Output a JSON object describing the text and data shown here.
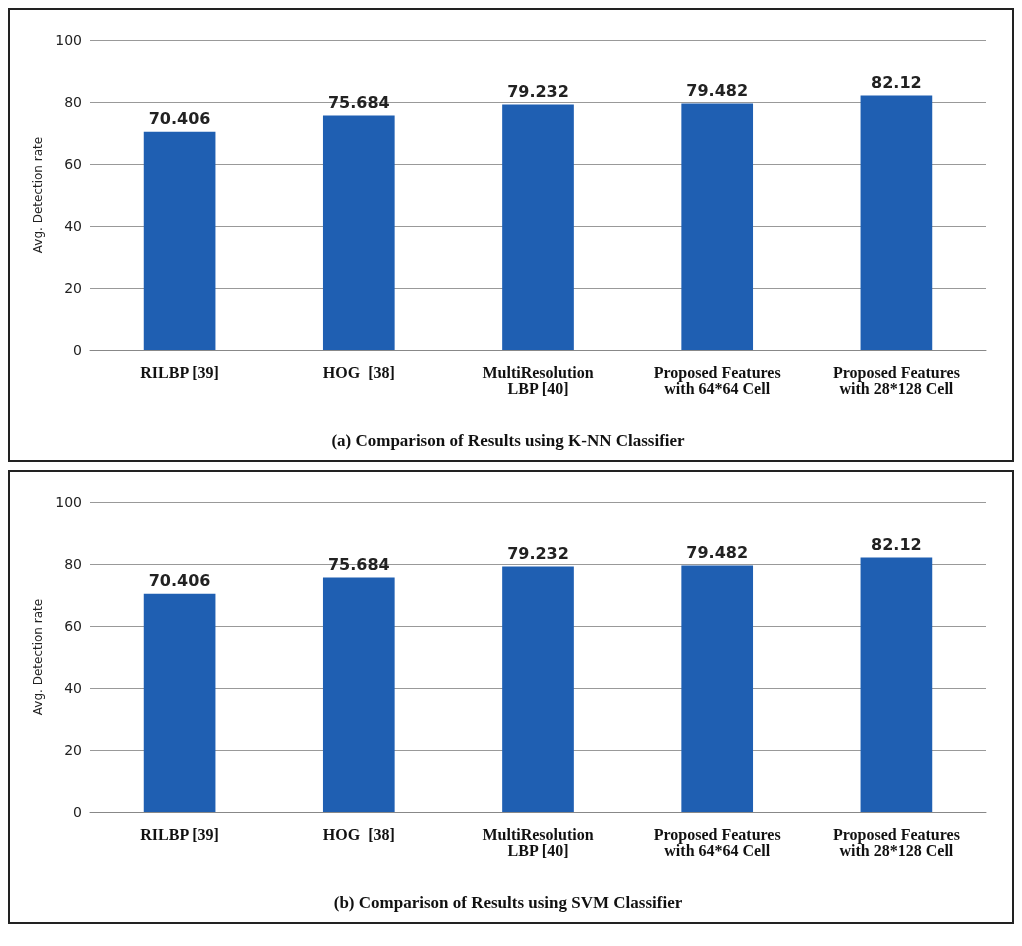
{
  "chart_data": [
    {
      "type": "bar",
      "title": "(a) Comparison of Results using K-NN Classifier",
      "ylabel": "Avg. Detection rate",
      "categories": [
        "RILBP [39]",
        "HOG  [38]",
        "MultiResolution\nLBP [40]",
        "Proposed Features\nwith 64*64 Cell",
        "Proposed Features\nwith 28*128 Cell"
      ],
      "values": [
        70.406,
        75.684,
        79.232,
        79.482,
        82.12
      ],
      "color": "#1f5fb2",
      "ylim": [
        0,
        100
      ],
      "yticks": [
        0,
        20,
        40,
        60,
        80,
        100
      ],
      "grid": "y",
      "data_labels": true
    },
    {
      "type": "bar",
      "title": "(b) Comparison of Results using SVM Classifier",
      "ylabel": "Avg. Detection rate",
      "categories": [
        "RILBP [39]",
        "HOG  [38]",
        "MultiResolution\nLBP [40]",
        "Proposed Features\nwith 64*64 Cell",
        "Proposed Features\nwith 28*128 Cell"
      ],
      "values": [
        70.406,
        75.684,
        79.232,
        79.482,
        82.12
      ],
      "color": "#1f5fb2",
      "ylim": [
        0,
        100
      ],
      "yticks": [
        0,
        20,
        40,
        60,
        80,
        100
      ],
      "grid": "y",
      "data_labels": true
    }
  ]
}
